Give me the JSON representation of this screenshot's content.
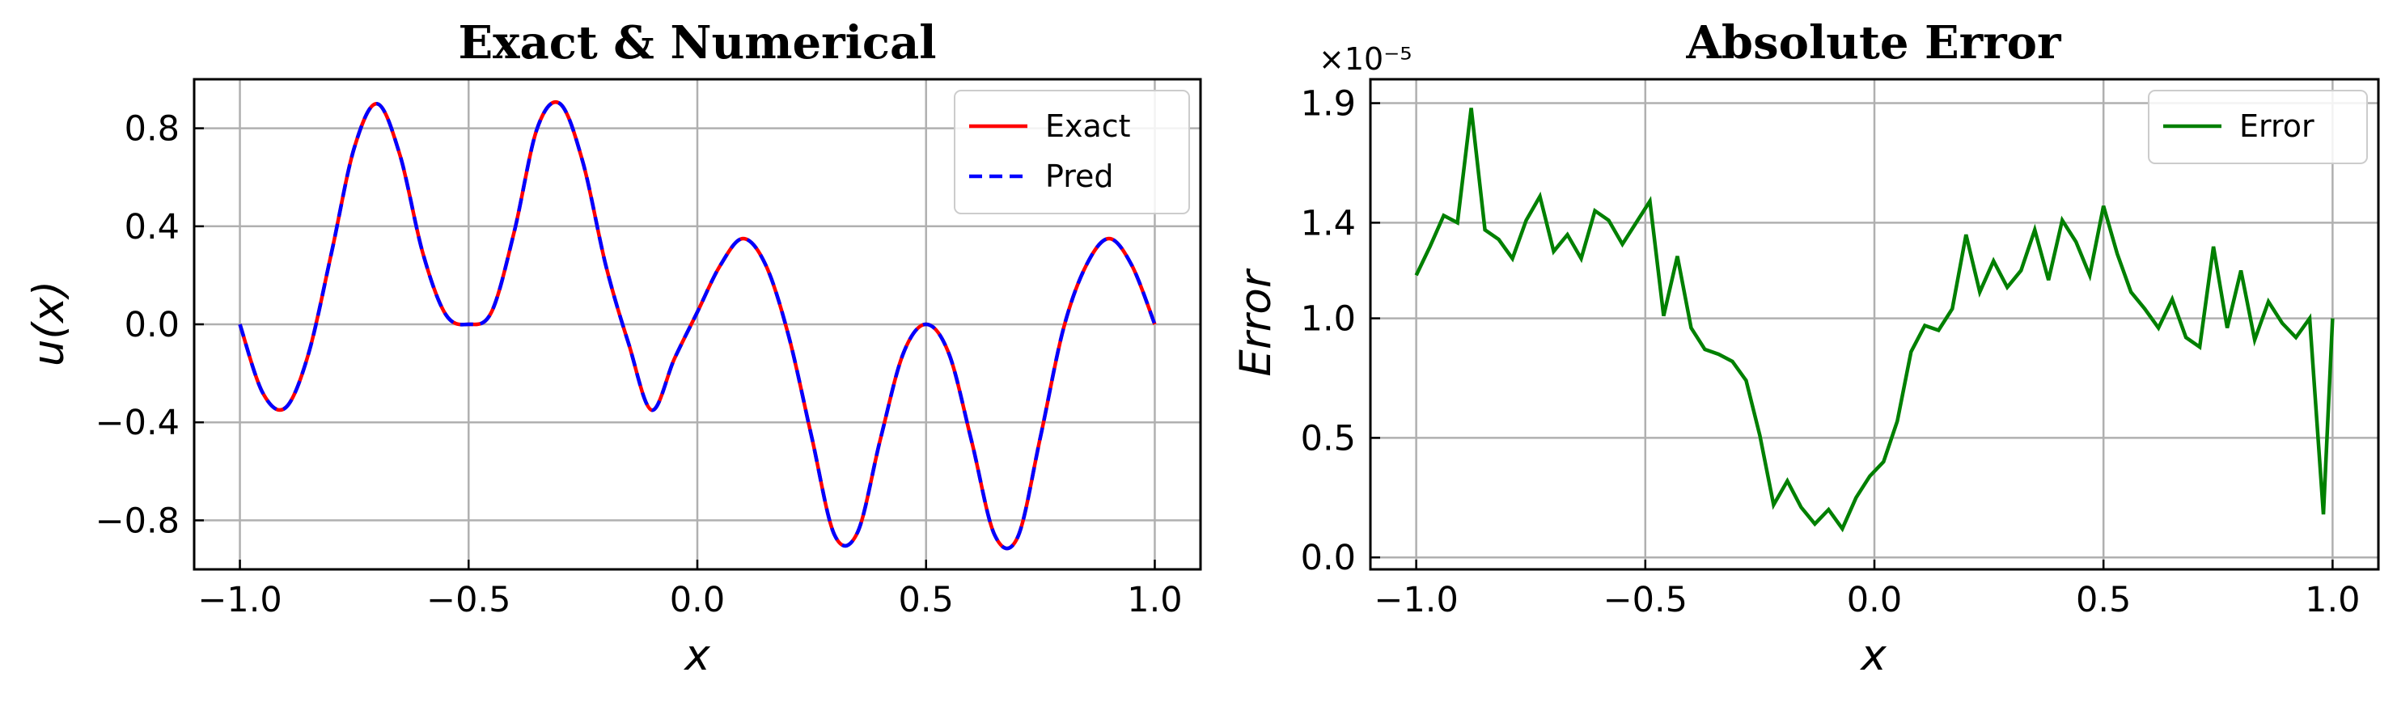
{
  "chart_data": [
    {
      "type": "line",
      "title": "Exact & Numerical",
      "xlabel": "x",
      "ylabel": "u(x)",
      "xlim": [
        -1.1,
        1.1
      ],
      "ylim": [
        -1.0,
        1.0
      ],
      "xticks": [
        -1.0,
        -0.5,
        0.0,
        0.5,
        1.0
      ],
      "xtick_labels": [
        "−1.0",
        "−0.5",
        "0.0",
        "0.5",
        "1.0"
      ],
      "yticks": [
        0.8,
        0.4,
        0.0,
        -0.4,
        -0.8
      ],
      "ytick_labels": [
        "0.8",
        "0.4",
        "0.0",
        "−0.4",
        "−0.8"
      ],
      "grid": true,
      "legend_position": "top-right",
      "x": [
        -1.0,
        -0.95,
        -0.9,
        -0.85,
        -0.8,
        -0.75,
        -0.7,
        -0.65,
        -0.6,
        -0.55,
        -0.5,
        -0.45,
        -0.4,
        -0.35,
        -0.3,
        -0.25,
        -0.2,
        -0.15,
        -0.1,
        -0.05,
        0.0,
        0.05,
        0.1,
        0.15,
        0.2,
        0.25,
        0.3,
        0.35,
        0.4,
        0.45,
        0.5,
        0.55,
        0.6,
        0.65,
        0.7,
        0.75,
        0.8,
        0.85,
        0.9,
        0.95,
        1.0
      ],
      "series": [
        {
          "name": "Exact",
          "color": "#ff0000",
          "style": "solid",
          "values": [
            0.0,
            -0.28,
            -0.34,
            -0.12,
            0.29,
            0.72,
            0.9,
            0.69,
            0.29,
            0.04,
            0.0,
            0.05,
            0.38,
            0.8,
            0.9,
            0.66,
            0.24,
            -0.08,
            -0.35,
            -0.14,
            0.05,
            0.24,
            0.35,
            0.24,
            -0.05,
            -0.46,
            -0.86,
            -0.85,
            -0.47,
            -0.12,
            0.0,
            -0.12,
            -0.48,
            -0.86,
            -0.87,
            -0.46,
            -0.02,
            0.24,
            0.35,
            0.24,
            0.0
          ]
        },
        {
          "name": "Pred",
          "color": "#0000ff",
          "style": "dashed",
          "values": [
            0.0,
            -0.28,
            -0.34,
            -0.12,
            0.29,
            0.72,
            0.9,
            0.69,
            0.29,
            0.04,
            0.0,
            0.05,
            0.38,
            0.8,
            0.9,
            0.66,
            0.24,
            -0.08,
            -0.35,
            -0.14,
            0.05,
            0.24,
            0.35,
            0.24,
            -0.05,
            -0.46,
            -0.86,
            -0.85,
            -0.47,
            -0.12,
            0.0,
            -0.12,
            -0.48,
            -0.86,
            -0.87,
            -0.46,
            -0.02,
            0.24,
            0.35,
            0.24,
            0.0
          ]
        }
      ]
    },
    {
      "type": "line",
      "title": "Absolute Error",
      "xlabel": "x",
      "ylabel": "Error",
      "y_offset_label": "×10⁻⁵",
      "xlim": [
        -1.1,
        1.1
      ],
      "ylim": [
        -0.05,
        2.0
      ],
      "xticks": [
        -1.0,
        -0.5,
        0.0,
        0.5,
        1.0
      ],
      "xtick_labels": [
        "−1.0",
        "−0.5",
        "0.0",
        "0.5",
        "1.0"
      ],
      "yticks": [
        1.9,
        1.4,
        1.0,
        0.5,
        0.0
      ],
      "ytick_labels": [
        "1.9",
        "1.4",
        "1.0",
        "0.5",
        "0.0"
      ],
      "grid": true,
      "legend_position": "top-right",
      "x": [
        -1.0,
        -0.97,
        -0.94,
        -0.91,
        -0.88,
        -0.85,
        -0.82,
        -0.79,
        -0.76,
        -0.73,
        -0.7,
        -0.67,
        -0.64,
        -0.61,
        -0.58,
        -0.55,
        -0.52,
        -0.49,
        -0.46,
        -0.43,
        -0.4,
        -0.37,
        -0.34,
        -0.31,
        -0.28,
        -0.25,
        -0.22,
        -0.19,
        -0.16,
        -0.13,
        -0.1,
        -0.07,
        -0.04,
        -0.01,
        0.02,
        0.05,
        0.08,
        0.11,
        0.14,
        0.17,
        0.2,
        0.23,
        0.26,
        0.29,
        0.32,
        0.35,
        0.38,
        0.41,
        0.44,
        0.47,
        0.5,
        0.53,
        0.56,
        0.59,
        0.62,
        0.65,
        0.68,
        0.71,
        0.74,
        0.77,
        0.8,
        0.83,
        0.86,
        0.89,
        0.92,
        0.95,
        0.98,
        1.0
      ],
      "series": [
        {
          "name": "Error",
          "color": "#008000",
          "style": "solid",
          "values": [
            1.18,
            1.3,
            1.43,
            1.4,
            1.88,
            1.37,
            1.33,
            1.25,
            1.41,
            1.51,
            1.28,
            1.35,
            1.25,
            1.45,
            1.41,
            1.31,
            1.4,
            1.49,
            1.01,
            1.26,
            0.96,
            0.87,
            0.85,
            0.82,
            0.74,
            0.51,
            0.22,
            0.32,
            0.21,
            0.14,
            0.2,
            0.12,
            0.25,
            0.34,
            0.4,
            0.57,
            0.86,
            0.97,
            0.95,
            1.04,
            1.35,
            1.11,
            1.24,
            1.13,
            1.2,
            1.37,
            1.16,
            1.41,
            1.32,
            1.18,
            1.47,
            1.27,
            1.11,
            1.04,
            0.96,
            1.08,
            0.92,
            0.88,
            1.3,
            0.96,
            1.2,
            0.91,
            1.07,
            0.98,
            0.92,
            1.0,
            0.18,
            1.0
          ]
        }
      ]
    }
  ]
}
